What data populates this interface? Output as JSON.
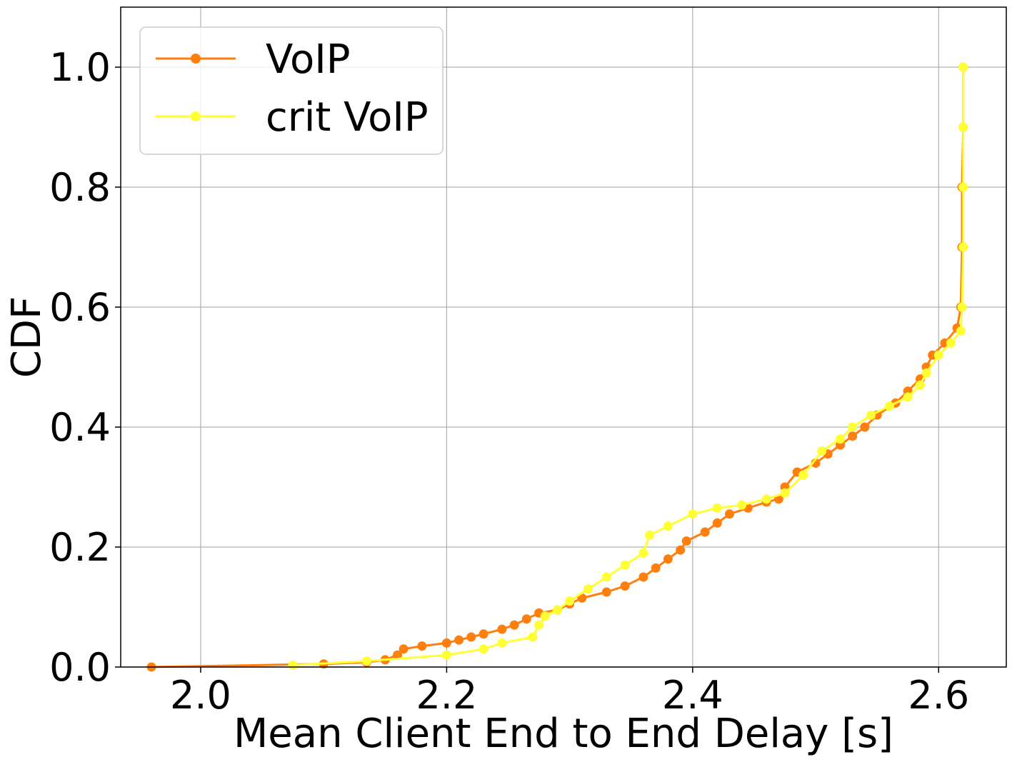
{
  "chart_data": {
    "type": "line",
    "title": "",
    "xlabel": "Mean Client End to End Delay [s]",
    "ylabel": "CDF",
    "xlim": [
      1.935,
      2.655
    ],
    "ylim": [
      0.0,
      1.1
    ],
    "xticks": [
      2.0,
      2.2,
      2.4,
      2.6
    ],
    "xtick_labels": [
      "2.0",
      "2.2",
      "2.4",
      "2.6"
    ],
    "yticks": [
      0.0,
      0.2,
      0.4,
      0.6,
      0.8,
      1.0
    ],
    "ytick_labels": [
      "0.0",
      "0.2",
      "0.4",
      "0.6",
      "0.8",
      "1.0"
    ],
    "grid": true,
    "legend_position": "top-left",
    "series": [
      {
        "name": "VoIP",
        "color": "#ff7f0e",
        "marker": "circle",
        "points": [
          [
            1.96,
            0.0
          ],
          [
            2.1,
            0.005
          ],
          [
            2.135,
            0.008
          ],
          [
            2.15,
            0.012
          ],
          [
            2.16,
            0.02
          ],
          [
            2.165,
            0.03
          ],
          [
            2.18,
            0.035
          ],
          [
            2.2,
            0.04
          ],
          [
            2.21,
            0.045
          ],
          [
            2.22,
            0.05
          ],
          [
            2.23,
            0.055
          ],
          [
            2.245,
            0.063
          ],
          [
            2.255,
            0.07
          ],
          [
            2.265,
            0.08
          ],
          [
            2.275,
            0.09
          ],
          [
            2.29,
            0.095
          ],
          [
            2.3,
            0.105
          ],
          [
            2.31,
            0.115
          ],
          [
            2.33,
            0.125
          ],
          [
            2.345,
            0.135
          ],
          [
            2.36,
            0.15
          ],
          [
            2.37,
            0.165
          ],
          [
            2.38,
            0.18
          ],
          [
            2.39,
            0.195
          ],
          [
            2.395,
            0.21
          ],
          [
            2.41,
            0.225
          ],
          [
            2.42,
            0.24
          ],
          [
            2.43,
            0.255
          ],
          [
            2.445,
            0.265
          ],
          [
            2.46,
            0.275
          ],
          [
            2.47,
            0.28
          ],
          [
            2.475,
            0.3
          ],
          [
            2.485,
            0.325
          ],
          [
            2.5,
            0.34
          ],
          [
            2.51,
            0.355
          ],
          [
            2.52,
            0.37
          ],
          [
            2.53,
            0.385
          ],
          [
            2.54,
            0.4
          ],
          [
            2.55,
            0.42
          ],
          [
            2.565,
            0.44
          ],
          [
            2.575,
            0.46
          ],
          [
            2.585,
            0.48
          ],
          [
            2.59,
            0.5
          ],
          [
            2.595,
            0.52
          ],
          [
            2.605,
            0.54
          ],
          [
            2.615,
            0.565
          ],
          [
            2.618,
            0.6
          ],
          [
            2.619,
            0.7
          ],
          [
            2.619,
            0.8
          ],
          [
            2.62,
            0.9
          ],
          [
            2.62,
            1.0
          ]
        ]
      },
      {
        "name": "crit VoIP",
        "color": "#ffff33",
        "marker": "circle",
        "points": [
          [
            2.075,
            0.003
          ],
          [
            2.135,
            0.01
          ],
          [
            2.2,
            0.02
          ],
          [
            2.23,
            0.03
          ],
          [
            2.245,
            0.04
          ],
          [
            2.27,
            0.05
          ],
          [
            2.275,
            0.07
          ],
          [
            2.28,
            0.085
          ],
          [
            2.29,
            0.095
          ],
          [
            2.3,
            0.11
          ],
          [
            2.315,
            0.13
          ],
          [
            2.33,
            0.15
          ],
          [
            2.345,
            0.17
          ],
          [
            2.36,
            0.19
          ],
          [
            2.365,
            0.22
          ],
          [
            2.38,
            0.235
          ],
          [
            2.4,
            0.255
          ],
          [
            2.42,
            0.265
          ],
          [
            2.44,
            0.27
          ],
          [
            2.46,
            0.28
          ],
          [
            2.475,
            0.29
          ],
          [
            2.49,
            0.32
          ],
          [
            2.505,
            0.36
          ],
          [
            2.52,
            0.38
          ],
          [
            2.53,
            0.4
          ],
          [
            2.545,
            0.42
          ],
          [
            2.56,
            0.435
          ],
          [
            2.575,
            0.45
          ],
          [
            2.585,
            0.47
          ],
          [
            2.59,
            0.49
          ],
          [
            2.6,
            0.52
          ],
          [
            2.61,
            0.54
          ],
          [
            2.618,
            0.56
          ],
          [
            2.619,
            0.6
          ],
          [
            2.62,
            0.7
          ],
          [
            2.62,
            0.8
          ],
          [
            2.62,
            0.9
          ],
          [
            2.62,
            1.0
          ]
        ]
      }
    ]
  }
}
